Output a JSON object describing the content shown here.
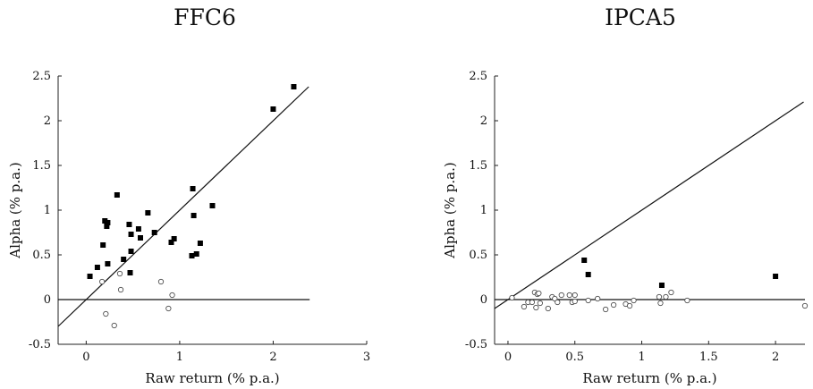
{
  "chart_data": [
    {
      "type": "scatter",
      "title": "FFC6",
      "xlabel": "Raw return (% p.a.)",
      "ylabel": "Alpha (% p.a.)",
      "xlim": [
        -0.3,
        3.0
      ],
      "ylim": [
        -0.5,
        2.5
      ],
      "xticks": [
        "0",
        "1",
        "2",
        "3"
      ],
      "yticks": [
        "2.5",
        "2",
        "1.5",
        "1",
        "0.5",
        "0",
        "-0.5"
      ],
      "grid": false,
      "reference_lines": [
        "y = 0",
        "y = x"
      ],
      "series": [
        {
          "marker": "filled-square",
          "points": [
            [
              0.04,
              0.26
            ],
            [
              0.12,
              0.36
            ],
            [
              0.18,
              0.61
            ],
            [
              0.2,
              0.88
            ],
            [
              0.22,
              0.82
            ],
            [
              0.23,
              0.86
            ],
            [
              0.23,
              0.4
            ],
            [
              0.33,
              1.17
            ],
            [
              0.4,
              0.45
            ],
            [
              0.46,
              0.84
            ],
            [
              0.47,
              0.3
            ],
            [
              0.48,
              0.73
            ],
            [
              0.48,
              0.54
            ],
            [
              0.56,
              0.79
            ],
            [
              0.58,
              0.69
            ],
            [
              0.66,
              0.97
            ],
            [
              0.73,
              0.75
            ],
            [
              0.91,
              0.64
            ],
            [
              0.94,
              0.68
            ],
            [
              1.13,
              0.49
            ],
            [
              1.14,
              1.24
            ],
            [
              1.15,
              0.94
            ],
            [
              1.18,
              0.51
            ],
            [
              1.22,
              0.63
            ],
            [
              1.35,
              1.05
            ],
            [
              2.0,
              2.13
            ],
            [
              2.22,
              2.38
            ]
          ]
        },
        {
          "marker": "hollow-circle",
          "points": [
            [
              0.17,
              0.2
            ],
            [
              0.21,
              -0.16
            ],
            [
              0.3,
              -0.29
            ],
            [
              0.36,
              0.29
            ],
            [
              0.37,
              0.11
            ],
            [
              0.8,
              0.2
            ],
            [
              0.88,
              -0.1
            ],
            [
              0.92,
              0.05
            ]
          ]
        }
      ]
    },
    {
      "type": "scatter",
      "title": "IPCA5",
      "xlabel": "Raw return (% p.a.)",
      "ylabel": "Alpha (% p.a.)",
      "xlim": [
        -0.1,
        2.22
      ],
      "ylim": [
        -0.5,
        2.5
      ],
      "xticks": [
        "0",
        "0.5",
        "1",
        "1.5",
        "2"
      ],
      "yticks": [
        "2.5",
        "2",
        "1.5",
        "1",
        "0.5",
        "0",
        "-0.5"
      ],
      "grid": false,
      "reference_lines": [
        "y = 0",
        "y = x"
      ],
      "series": [
        {
          "marker": "filled-square",
          "points": [
            [
              0.57,
              0.44
            ],
            [
              0.6,
              0.28
            ],
            [
              1.15,
              0.16
            ],
            [
              2.0,
              0.26
            ]
          ]
        },
        {
          "marker": "hollow-circle",
          "points": [
            [
              0.03,
              0.02
            ],
            [
              0.12,
              -0.08
            ],
            [
              0.15,
              -0.03
            ],
            [
              0.18,
              -0.03
            ],
            [
              0.2,
              0.08
            ],
            [
              0.21,
              -0.09
            ],
            [
              0.22,
              0.06
            ],
            [
              0.23,
              0.07
            ],
            [
              0.24,
              -0.04
            ],
            [
              0.3,
              -0.1
            ],
            [
              0.33,
              0.03
            ],
            [
              0.35,
              0.01
            ],
            [
              0.37,
              -0.03
            ],
            [
              0.4,
              0.05
            ],
            [
              0.46,
              0.05
            ],
            [
              0.48,
              -0.03
            ],
            [
              0.5,
              0.05
            ],
            [
              0.5,
              -0.02
            ],
            [
              0.6,
              -0.01
            ],
            [
              0.67,
              0.01
            ],
            [
              0.73,
              -0.11
            ],
            [
              0.79,
              -0.06
            ],
            [
              0.88,
              -0.05
            ],
            [
              0.91,
              -0.07
            ],
            [
              0.94,
              -0.01
            ],
            [
              1.13,
              0.03
            ],
            [
              1.14,
              -0.04
            ],
            [
              1.18,
              0.03
            ],
            [
              1.22,
              0.08
            ],
            [
              1.34,
              -0.01
            ],
            [
              2.22,
              -0.07
            ]
          ]
        }
      ]
    }
  ]
}
